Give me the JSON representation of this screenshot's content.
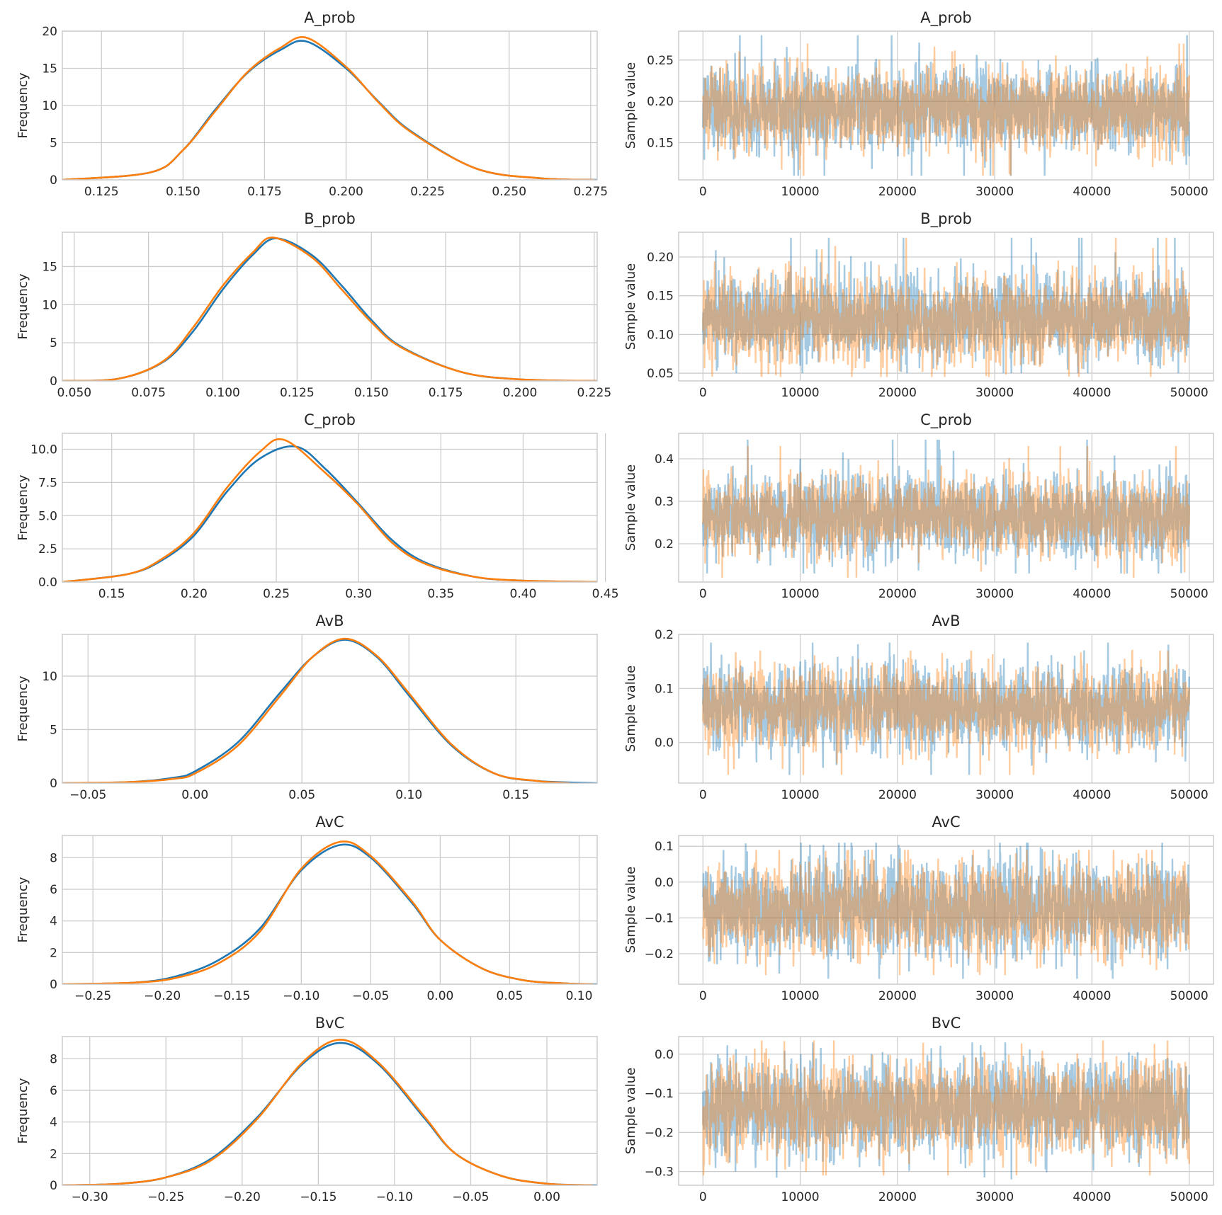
{
  "chart_data": [
    {
      "type": "line",
      "panel": "kde",
      "title": "A_prob",
      "ylabel": "Frequency",
      "xlim": [
        0.113,
        0.277
      ],
      "ylim": [
        0,
        20
      ],
      "xticks": [
        0.125,
        0.15,
        0.175,
        0.2,
        0.225,
        0.25,
        0.275
      ],
      "xtick_labels": [
        "0.125",
        "0.150",
        "0.175",
        "0.200",
        "0.225",
        "0.250",
        "0.275"
      ],
      "yticks": [
        0,
        5,
        10,
        15,
        20
      ],
      "ytick_labels": [
        "0",
        "5",
        "10",
        "15",
        "20"
      ],
      "series": [
        {
          "color": "#1f77b4",
          "x": [
            0.113,
            0.14,
            0.15,
            0.16,
            0.17,
            0.18,
            0.188,
            0.2,
            0.21,
            0.22,
            0.24,
            0.26,
            0.277
          ],
          "y": [
            0,
            1,
            4,
            9.5,
            14.5,
            17.5,
            18.6,
            15,
            10.5,
            6.5,
            1.5,
            0.2,
            0
          ]
        },
        {
          "color": "#ff7f0e",
          "x": [
            0.113,
            0.14,
            0.15,
            0.16,
            0.17,
            0.18,
            0.188,
            0.2,
            0.21,
            0.22,
            0.24,
            0.26,
            0.276
          ],
          "y": [
            0,
            1,
            4,
            9.3,
            14.6,
            17.8,
            19.1,
            15.2,
            10.4,
            6.4,
            1.5,
            0.2,
            0
          ]
        }
      ]
    },
    {
      "type": "line",
      "panel": "trace",
      "title": "A_prob",
      "ylabel": "Sample value",
      "xlim": [
        -2500,
        52500
      ],
      "ylim": [
        0.105,
        0.285
      ],
      "xticks": [
        0,
        10000,
        20000,
        30000,
        40000,
        50000
      ],
      "xtick_labels": [
        "0",
        "10000",
        "20000",
        "30000",
        "40000",
        "50000"
      ],
      "yticks": [
        0.15,
        0.2,
        0.25
      ],
      "ytick_labels": [
        "0.15",
        "0.20",
        "0.25"
      ],
      "series": [
        {
          "color": "#1f77b4",
          "center": 0.19,
          "spread": 0.05,
          "min": 0.11,
          "max": 0.28
        },
        {
          "color": "#ff7f0e",
          "center": 0.19,
          "spread": 0.05,
          "min": 0.11,
          "max": 0.27
        }
      ]
    },
    {
      "type": "line",
      "panel": "kde",
      "title": "B_prob",
      "ylabel": "Frequency",
      "xlim": [
        0.046,
        0.226
      ],
      "ylim": [
        0,
        19.5
      ],
      "xticks": [
        0.05,
        0.075,
        0.1,
        0.125,
        0.15,
        0.175,
        0.2,
        0.225
      ],
      "xtick_labels": [
        "0.050",
        "0.075",
        "0.100",
        "0.125",
        "0.150",
        "0.175",
        "0.200",
        "0.225"
      ],
      "yticks": [
        0,
        5,
        10,
        15
      ],
      "ytick_labels": [
        "0",
        "5",
        "10",
        "15"
      ],
      "series": [
        {
          "color": "#1f77b4",
          "x": [
            0.046,
            0.065,
            0.08,
            0.09,
            0.1,
            0.11,
            0.118,
            0.13,
            0.14,
            0.15,
            0.16,
            0.18,
            0.2,
            0.226
          ],
          "y": [
            0,
            0.3,
            2.5,
            6.5,
            12,
            16.5,
            18.7,
            16.5,
            12.5,
            8,
            4.5,
            1.2,
            0.2,
            0
          ]
        },
        {
          "color": "#ff7f0e",
          "x": [
            0.046,
            0.065,
            0.08,
            0.09,
            0.1,
            0.11,
            0.117,
            0.13,
            0.14,
            0.15,
            0.16,
            0.18,
            0.2,
            0.226
          ],
          "y": [
            0,
            0.3,
            2.6,
            7,
            12.5,
            16.8,
            18.8,
            16.2,
            12,
            7.7,
            4.4,
            1.2,
            0.2,
            0
          ]
        }
      ]
    },
    {
      "type": "line",
      "panel": "trace",
      "title": "B_prob",
      "ylabel": "Sample value",
      "xlim": [
        -2500,
        52500
      ],
      "ylim": [
        0.04,
        0.232
      ],
      "xticks": [
        0,
        10000,
        20000,
        30000,
        40000,
        50000
      ],
      "xtick_labels": [
        "0",
        "10000",
        "20000",
        "30000",
        "40000",
        "50000"
      ],
      "yticks": [
        0.05,
        0.1,
        0.15,
        0.2
      ],
      "ytick_labels": [
        "0.05",
        "0.10",
        "0.15",
        "0.20"
      ],
      "series": [
        {
          "color": "#1f77b4",
          "center": 0.12,
          "spread": 0.055,
          "min": 0.05,
          "max": 0.225
        },
        {
          "color": "#ff7f0e",
          "center": 0.12,
          "spread": 0.055,
          "min": 0.045,
          "max": 0.225
        }
      ]
    },
    {
      "type": "line",
      "panel": "kde",
      "title": "C_prob",
      "ylabel": "Frequency",
      "xlim": [
        0.12,
        0.445
      ],
      "ylim": [
        0,
        11.2
      ],
      "xticks": [
        0.15,
        0.2,
        0.25,
        0.3,
        0.35,
        0.4,
        0.45
      ],
      "xtick_labels": [
        "0.15",
        "0.20",
        "0.25",
        "0.30",
        "0.35",
        "0.40",
        "0.45"
      ],
      "yticks": [
        0,
        2.5,
        5,
        7.5,
        10
      ],
      "ytick_labels": [
        "0.0",
        "2.5",
        "5.0",
        "7.5",
        "10.0"
      ],
      "series": [
        {
          "color": "#1f77b4",
          "x": [
            0.12,
            0.16,
            0.18,
            0.2,
            0.22,
            0.24,
            0.262,
            0.28,
            0.3,
            0.32,
            0.34,
            0.37,
            0.4,
            0.445
          ],
          "y": [
            0,
            0.6,
            1.6,
            3.5,
            6.8,
            9.3,
            10.2,
            8.5,
            5.9,
            3.2,
            1.5,
            0.4,
            0.1,
            0
          ]
        },
        {
          "color": "#ff7f0e",
          "x": [
            0.12,
            0.16,
            0.18,
            0.2,
            0.22,
            0.24,
            0.255,
            0.28,
            0.3,
            0.32,
            0.34,
            0.37,
            0.4,
            0.445
          ],
          "y": [
            0,
            0.6,
            1.7,
            3.7,
            7.1,
            9.8,
            10.7,
            8.2,
            5.8,
            3,
            1.4,
            0.4,
            0.1,
            0
          ]
        }
      ]
    },
    {
      "type": "line",
      "panel": "trace",
      "title": "C_prob",
      "ylabel": "Sample value",
      "xlim": [
        -2500,
        52500
      ],
      "ylim": [
        0.11,
        0.46
      ],
      "xticks": [
        0,
        10000,
        20000,
        30000,
        40000,
        50000
      ],
      "xtick_labels": [
        "0",
        "10000",
        "20000",
        "30000",
        "40000",
        "50000"
      ],
      "yticks": [
        0.2,
        0.3,
        0.4
      ],
      "ytick_labels": [
        "0.2",
        "0.3",
        "0.4"
      ],
      "series": [
        {
          "color": "#1f77b4",
          "center": 0.265,
          "spread": 0.095,
          "min": 0.13,
          "max": 0.445
        },
        {
          "color": "#ff7f0e",
          "center": 0.265,
          "spread": 0.095,
          "min": 0.12,
          "max": 0.43
        }
      ]
    },
    {
      "type": "line",
      "panel": "kde",
      "title": "AvB",
      "ylabel": "Frequency",
      "xlim": [
        -0.062,
        0.188
      ],
      "ylim": [
        0,
        13.9
      ],
      "xticks": [
        -0.05,
        0,
        0.05,
        0.1,
        0.15
      ],
      "xtick_labels": [
        "−0.05",
        "0.00",
        "0.05",
        "0.10",
        "0.15"
      ],
      "yticks": [
        0,
        5,
        10
      ],
      "ytick_labels": [
        "0",
        "5",
        "10"
      ],
      "series": [
        {
          "color": "#1f77b4",
          "x": [
            -0.062,
            -0.03,
            -0.01,
            0,
            0.02,
            0.04,
            0.055,
            0.07,
            0.085,
            0.1,
            0.12,
            0.14,
            0.16,
            0.188
          ],
          "y": [
            0,
            0.1,
            0.5,
            1.1,
            3.8,
            8.5,
            11.8,
            13.4,
            11.8,
            8.2,
            3.5,
            0.9,
            0.2,
            0
          ]
        },
        {
          "color": "#ff7f0e",
          "x": [
            -0.062,
            -0.03,
            -0.01,
            0,
            0.02,
            0.04,
            0.055,
            0.07,
            0.085,
            0.1,
            0.12,
            0.14,
            0.16,
            0.175
          ],
          "y": [
            0,
            0.1,
            0.4,
            0.9,
            3.5,
            8.2,
            11.8,
            13.5,
            11.9,
            8.4,
            3.6,
            0.9,
            0.2,
            0
          ]
        }
      ]
    },
    {
      "type": "line",
      "panel": "trace",
      "title": "AvB",
      "ylabel": "Sample value",
      "xlim": [
        -2500,
        52500
      ],
      "ylim": [
        -0.075,
        0.2
      ],
      "xticks": [
        0,
        10000,
        20000,
        30000,
        40000,
        50000
      ],
      "xtick_labels": [
        "0",
        "10000",
        "20000",
        "30000",
        "40000",
        "50000"
      ],
      "yticks": [
        0,
        0.1,
        0.2
      ],
      "ytick_labels": [
        "0.0",
        "0.1",
        "0.2"
      ],
      "series": [
        {
          "color": "#1f77b4",
          "center": 0.065,
          "spread": 0.075,
          "min": -0.06,
          "max": 0.185
        },
        {
          "color": "#ff7f0e",
          "center": 0.065,
          "spread": 0.075,
          "min": -0.06,
          "max": 0.17
        }
      ]
    },
    {
      "type": "line",
      "panel": "kde",
      "title": "AvC",
      "ylabel": "Frequency",
      "xlim": [
        -0.272,
        0.113
      ],
      "ylim": [
        0,
        9.4
      ],
      "xticks": [
        -0.25,
        -0.2,
        -0.15,
        -0.1,
        -0.05,
        0,
        0.05,
        0.1
      ],
      "xtick_labels": [
        "−0.25",
        "−0.20",
        "−0.15",
        "−0.10",
        "−0.05",
        "0.00",
        "0.05",
        "0.10"
      ],
      "yticks": [
        0,
        2,
        4,
        6,
        8
      ],
      "ytick_labels": [
        "0",
        "2",
        "4",
        "6",
        "8"
      ],
      "series": [
        {
          "color": "#1f77b4",
          "x": [
            -0.272,
            -0.22,
            -0.19,
            -0.16,
            -0.13,
            -0.1,
            -0.072,
            -0.05,
            -0.02,
            0.0,
            0.03,
            0.06,
            0.09,
            0.113
          ],
          "y": [
            0,
            0.1,
            0.5,
            1.5,
            3.5,
            7.2,
            8.8,
            8.0,
            5.1,
            2.8,
            1.0,
            0.25,
            0.05,
            0
          ]
        },
        {
          "color": "#ff7f0e",
          "x": [
            -0.272,
            -0.22,
            -0.19,
            -0.16,
            -0.13,
            -0.1,
            -0.072,
            -0.05,
            -0.02,
            0.0,
            0.03,
            0.06,
            0.09,
            0.11
          ],
          "y": [
            0,
            0.1,
            0.4,
            1.3,
            3.3,
            7.3,
            9.0,
            8.1,
            5.2,
            2.8,
            1.0,
            0.25,
            0.05,
            0
          ]
        }
      ]
    },
    {
      "type": "line",
      "panel": "trace",
      "title": "AvC",
      "ylabel": "Sample value",
      "xlim": [
        -2500,
        52500
      ],
      "ylim": [
        -0.285,
        0.13
      ],
      "xticks": [
        0,
        10000,
        20000,
        30000,
        40000,
        50000
      ],
      "xtick_labels": [
        "0",
        "10000",
        "20000",
        "30000",
        "40000",
        "50000"
      ],
      "yticks": [
        -0.2,
        -0.1,
        0,
        0.1
      ],
      "ytick_labels": [
        "−0.2",
        "−0.1",
        "0.0",
        "0.1"
      ],
      "series": [
        {
          "color": "#1f77b4",
          "center": -0.075,
          "spread": 0.13,
          "min": -0.27,
          "max": 0.11
        },
        {
          "color": "#ff7f0e",
          "center": -0.075,
          "spread": 0.13,
          "min": -0.26,
          "max": 0.09
        }
      ]
    },
    {
      "type": "line",
      "panel": "kde",
      "title": "BvC",
      "ylabel": "Frequency",
      "xlim": [
        -0.318,
        0.033
      ],
      "ylim": [
        0,
        9.4
      ],
      "xticks": [
        -0.3,
        -0.25,
        -0.2,
        -0.15,
        -0.1,
        -0.05,
        0
      ],
      "xtick_labels": [
        "−0.30",
        "−0.25",
        "−0.20",
        "−0.15",
        "−0.10",
        "−0.05",
        "0.00"
      ],
      "yticks": [
        0,
        2,
        4,
        6,
        8
      ],
      "ytick_labels": [
        "0",
        "2",
        "4",
        "6",
        "8"
      ],
      "series": [
        {
          "color": "#1f77b4",
          "x": [
            -0.318,
            -0.28,
            -0.25,
            -0.22,
            -0.19,
            -0.16,
            -0.135,
            -0.11,
            -0.08,
            -0.06,
            -0.03,
            0.0,
            0.033
          ],
          "y": [
            0,
            0.1,
            0.5,
            1.7,
            4.3,
            7.7,
            9.0,
            7.6,
            4.2,
            2.0,
            0.6,
            0.1,
            0
          ]
        },
        {
          "color": "#ff7f0e",
          "x": [
            -0.318,
            -0.28,
            -0.25,
            -0.22,
            -0.19,
            -0.16,
            -0.135,
            -0.11,
            -0.08,
            -0.06,
            -0.03,
            0.0,
            0.03
          ],
          "y": [
            0,
            0.1,
            0.5,
            1.6,
            4.2,
            7.8,
            9.2,
            7.7,
            4.3,
            2.0,
            0.6,
            0.1,
            0
          ]
        }
      ]
    },
    {
      "type": "line",
      "panel": "trace",
      "title": "BvC",
      "ylabel": "Sample value",
      "xlim": [
        -2500,
        52500
      ],
      "ylim": [
        -0.335,
        0.045
      ],
      "xticks": [
        0,
        10000,
        20000,
        30000,
        40000,
        50000
      ],
      "xtick_labels": [
        "0",
        "10000",
        "20000",
        "30000",
        "40000",
        "50000"
      ],
      "yticks": [
        -0.3,
        -0.2,
        -0.1,
        0
      ],
      "ytick_labels": [
        "−0.3",
        "−0.2",
        "−0.1",
        "0.0"
      ],
      "series": [
        {
          "color": "#1f77b4",
          "center": -0.14,
          "spread": 0.12,
          "min": -0.32,
          "max": 0.03
        },
        {
          "color": "#ff7f0e",
          "center": -0.14,
          "spread": 0.12,
          "min": -0.31,
          "max": 0.035
        }
      ]
    }
  ]
}
